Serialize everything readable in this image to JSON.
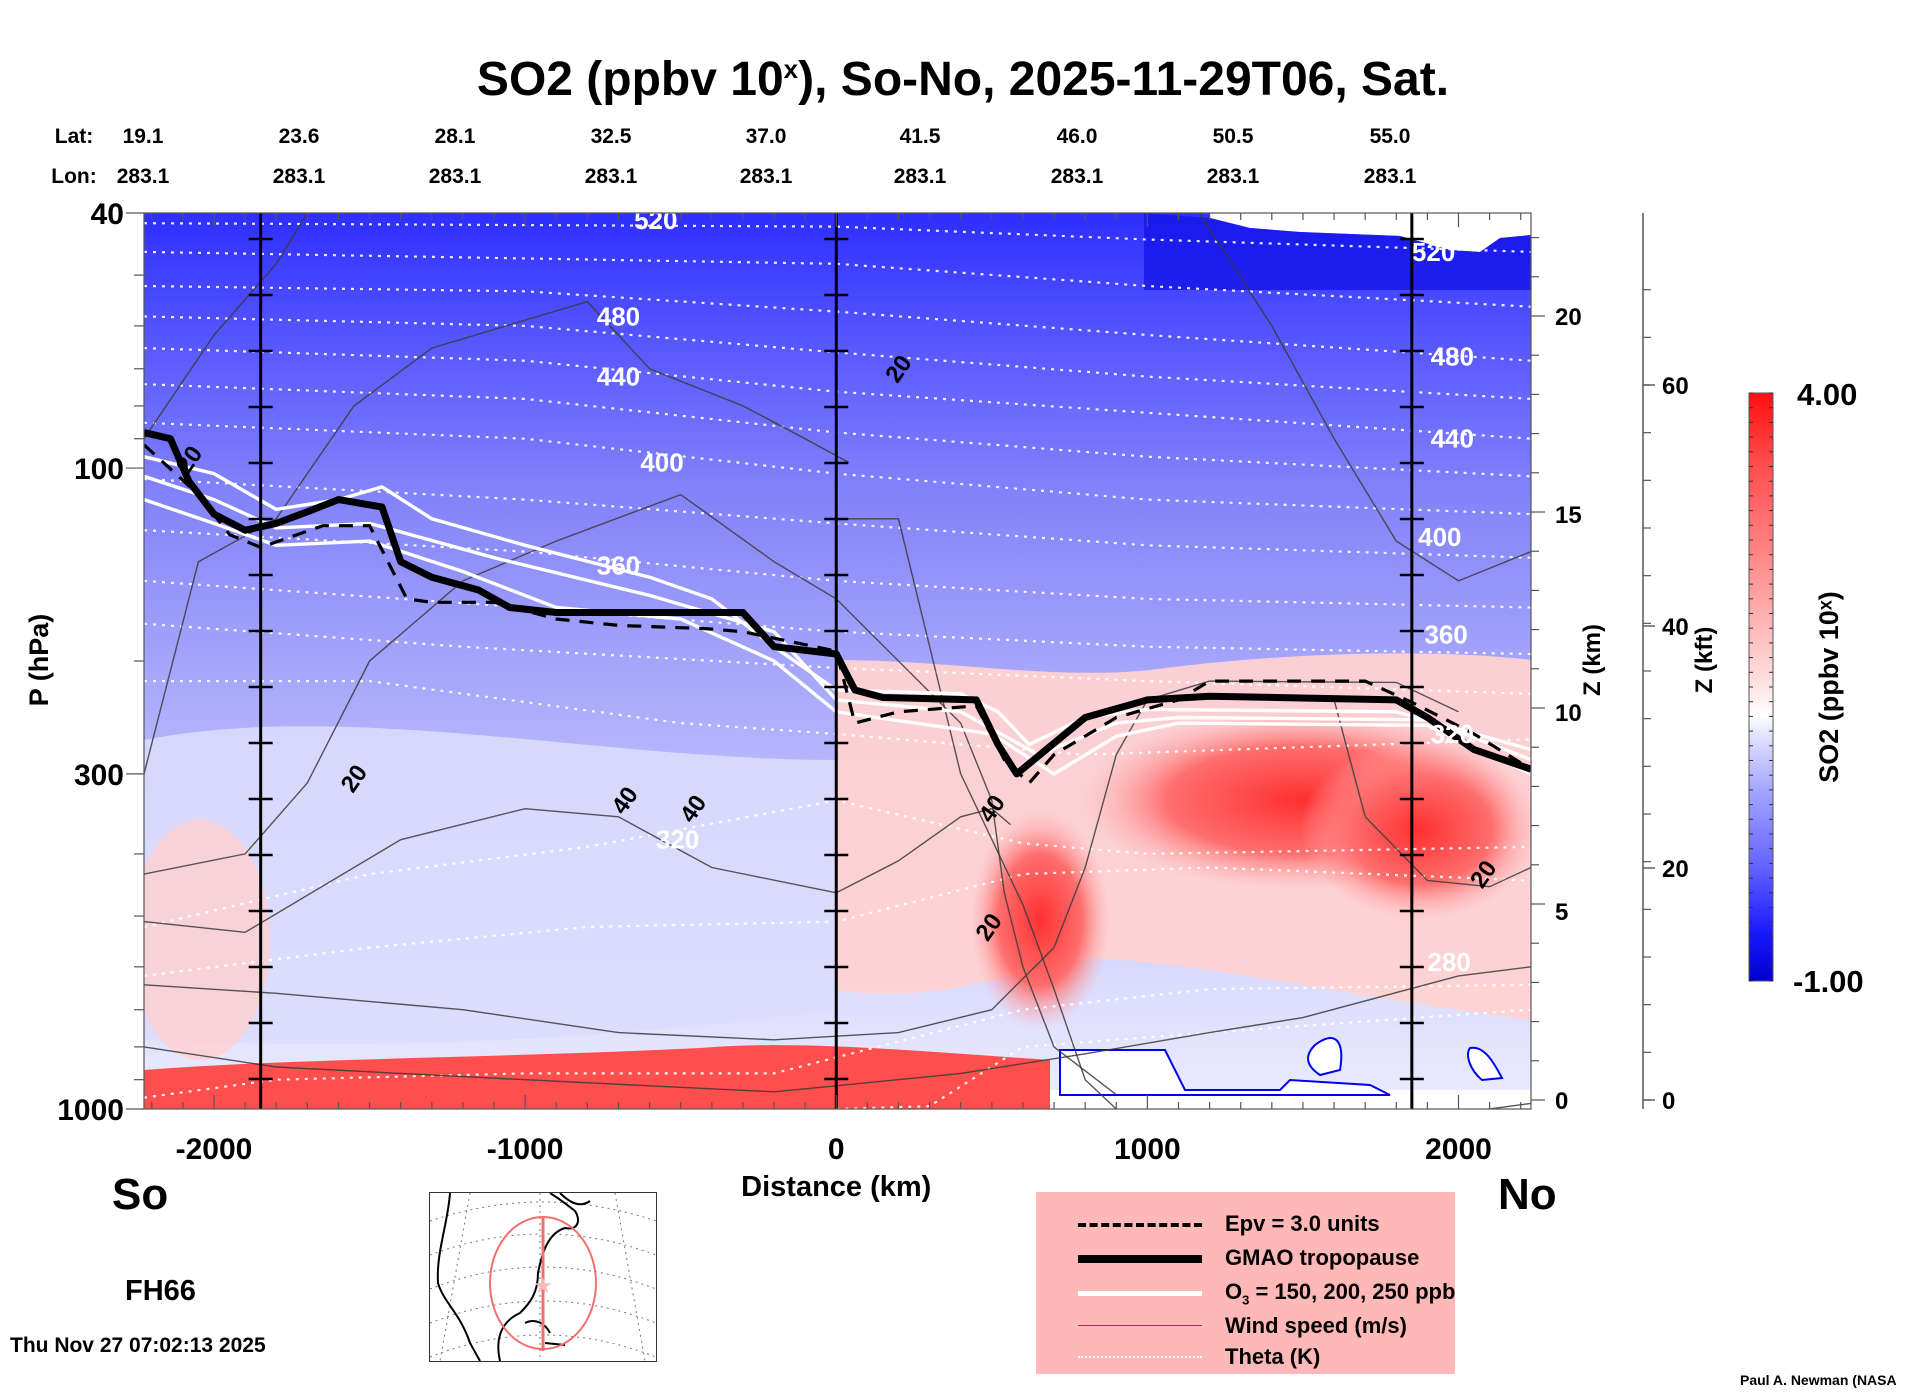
{
  "title": {
    "main": "SO2 (ppbv 10",
    "superscript": "x",
    "rest": "), So-No, 2025-11-29T06, Sat."
  },
  "latlon": {
    "lat_label": "Lat:",
    "lon_label": "Lon:",
    "lat_values": [
      "19.1",
      "23.6",
      "28.1",
      "32.5",
      "37.0",
      "41.5",
      "46.0",
      "50.5",
      "55.0"
    ],
    "lon_values": [
      "283.1",
      "283.1",
      "283.1",
      "283.1",
      "283.1",
      "283.1",
      "283.1",
      "283.1",
      "283.1"
    ]
  },
  "labels": {
    "south": "So",
    "north": "No",
    "forecast_hour": "FH66",
    "timestamp": "Thu Nov 27 07:02:13 2025",
    "credit": "Paul A. Newman (NASA"
  },
  "legend": {
    "items": [
      {
        "style": "dashed",
        "label": "Epv = 3.0 units"
      },
      {
        "style": "thick",
        "label": "GMAO tropopause"
      },
      {
        "style": "white",
        "label_pre": "O",
        "label_sub": "3",
        "label_post": " = 150, 200, 250 ppb"
      },
      {
        "style": "thin",
        "label": "Wind speed (m/s)"
      },
      {
        "style": "dotted",
        "label": "Theta (K)"
      }
    ]
  },
  "colors": {
    "legend_bg": "#ffb8b8",
    "high": "#ff0000",
    "mid": "#ffffff",
    "low": "#0000dd"
  },
  "chart_data": {
    "type": "heatmap",
    "title": "SO2 (ppbv 10^x), So-No, 2025-11-29T06, Sat.",
    "xlabel": "Distance (km)",
    "ylabel": "P (hPa)",
    "y2label": "Z (km)",
    "y3label": "Z (kft)",
    "colorbar_label": "SO2 (ppbv 10^x)",
    "xlim": [
      -2225,
      2233
    ],
    "ylim": [
      1000,
      40
    ],
    "yscale": "log",
    "x_ticks": [
      -2000,
      -1000,
      0,
      1000,
      2000
    ],
    "x_tick_labels": [
      "-2000",
      "-1000",
      "0",
      "1000",
      "2000"
    ],
    "y_ticks": [
      40,
      100,
      300,
      1000
    ],
    "y_tick_labels": [
      "40",
      "100",
      "300",
      "1000"
    ],
    "z_km_ticks": [
      0,
      5,
      10,
      15,
      20
    ],
    "z_km_tick_labels": [
      "0",
      "5",
      "10",
      "15",
      "20"
    ],
    "z_kft_ticks": [
      0,
      20,
      40,
      60
    ],
    "z_kft_tick_labels": [
      "0",
      "20",
      "40",
      "60"
    ],
    "colorbar_range": [
      -1.0,
      4.0
    ],
    "colorbar_tick_labels": [
      "4.00",
      "-1.00"
    ],
    "vertical_markers_km": [
      -1850,
      0,
      1850
    ],
    "theta_contours_K": [
      280,
      320,
      360,
      400,
      440,
      480,
      520
    ],
    "wind_speed_contour_labels": [
      "20",
      "20",
      "20",
      "20",
      "20",
      "40",
      "40",
      "40"
    ],
    "theta_label_positions": [
      {
        "label": "520",
        "x_km": -580,
        "p_hPa": 41
      },
      {
        "label": "480",
        "x_km": -700,
        "p_hPa": 58
      },
      {
        "label": "440",
        "x_km": -700,
        "p_hPa": 72
      },
      {
        "label": "400",
        "x_km": -560,
        "p_hPa": 98
      },
      {
        "label": "360",
        "x_km": -700,
        "p_hPa": 142
      },
      {
        "label": "320",
        "x_km": -510,
        "p_hPa": 380
      },
      {
        "label": "520",
        "x_km": 1920,
        "p_hPa": 46
      },
      {
        "label": "480",
        "x_km": 1980,
        "p_hPa": 67
      },
      {
        "label": "440",
        "x_km": 1980,
        "p_hPa": 90
      },
      {
        "label": "400",
        "x_km": 1940,
        "p_hPa": 128
      },
      {
        "label": "360",
        "x_km": 1960,
        "p_hPa": 182
      },
      {
        "label": "320",
        "x_km": 1980,
        "p_hPa": 260
      },
      {
        "label": "280",
        "x_km": 1970,
        "p_hPa": 590
      }
    ],
    "wind_label_positions": [
      {
        "label": "20",
        "x_km": -2080,
        "p_hPa": 97
      },
      {
        "label": "20",
        "x_km": 200,
        "p_hPa": 70
      },
      {
        "label": "20",
        "x_km": -1550,
        "p_hPa": 305
      },
      {
        "label": "40",
        "x_km": -680,
        "p_hPa": 330
      },
      {
        "label": "40",
        "x_km": -460,
        "p_hPa": 340
      },
      {
        "label": "40",
        "x_km": 500,
        "p_hPa": 340
      },
      {
        "label": "20",
        "x_km": 490,
        "p_hPa": 520
      },
      {
        "label": "20",
        "x_km": 2080,
        "p_hPa": 430
      }
    ],
    "tropopause_gmao": [
      [
        -2225,
        88
      ],
      [
        -2140,
        90
      ],
      [
        -2080,
        105
      ],
      [
        -2000,
        118
      ],
      [
        -1900,
        125
      ],
      [
        -1800,
        122
      ],
      [
        -1700,
        117
      ],
      [
        -1600,
        112
      ],
      [
        -1460,
        115
      ],
      [
        -1400,
        140
      ],
      [
        -1300,
        148
      ],
      [
        -1150,
        155
      ],
      [
        -1050,
        165
      ],
      [
        -900,
        168
      ],
      [
        -300,
        168
      ],
      [
        -200,
        190
      ],
      [
        0,
        195
      ],
      [
        60,
        222
      ],
      [
        150,
        228
      ],
      [
        450,
        230
      ],
      [
        520,
        270
      ],
      [
        580,
        300
      ],
      [
        800,
        245
      ],
      [
        1000,
        230
      ],
      [
        1200,
        227
      ],
      [
        1800,
        230
      ],
      [
        1900,
        245
      ],
      [
        2050,
        275
      ],
      [
        2233,
        295
      ]
    ],
    "epv_3": [
      [
        -2225,
        92
      ],
      [
        -2050,
        110
      ],
      [
        -1950,
        127
      ],
      [
        -1850,
        133
      ],
      [
        -1650,
        123
      ],
      [
        -1500,
        123
      ],
      [
        -1380,
        160
      ],
      [
        -1300,
        162
      ],
      [
        -1100,
        162
      ],
      [
        -900,
        172
      ],
      [
        -700,
        176
      ],
      [
        -420,
        178
      ],
      [
        -300,
        180
      ],
      [
        0,
        193
      ],
      [
        60,
        250
      ],
      [
        200,
        240
      ],
      [
        450,
        235
      ],
      [
        540,
        285
      ],
      [
        620,
        310
      ],
      [
        700,
        280
      ],
      [
        900,
        245
      ],
      [
        1100,
        230
      ],
      [
        1200,
        215
      ],
      [
        1700,
        215
      ],
      [
        1850,
        232
      ],
      [
        2050,
        260
      ],
      [
        2233,
        295
      ]
    ],
    "o3_150_200_250": [
      [
        [
          -2225,
          96
        ],
        [
          -2000,
          102
        ],
        [
          -1800,
          116
        ],
        [
          -1600,
          112
        ],
        [
          -1460,
          107
        ],
        [
          -1300,
          120
        ],
        [
          -1000,
          132
        ],
        [
          -600,
          148
        ],
        [
          -400,
          160
        ],
        [
          -200,
          190
        ],
        [
          0,
          222
        ],
        [
          400,
          225
        ],
        [
          520,
          240
        ],
        [
          620,
          270
        ],
        [
          800,
          245
        ],
        [
          1000,
          238
        ],
        [
          1800,
          240
        ],
        [
          2233,
          275
        ]
      ],
      [
        [
          -2225,
          103
        ],
        [
          -2000,
          112
        ],
        [
          -1800,
          124
        ],
        [
          -1500,
          122
        ],
        [
          -1100,
          138
        ],
        [
          -600,
          158
        ],
        [
          -200,
          180
        ],
        [
          0,
          230
        ],
        [
          400,
          240
        ],
        [
          650,
          280
        ],
        [
          900,
          250
        ],
        [
          1100,
          245
        ],
        [
          1900,
          247
        ],
        [
          2233,
          285
        ]
      ],
      [
        [
          -2225,
          112
        ],
        [
          -2000,
          122
        ],
        [
          -1800,
          132
        ],
        [
          -1500,
          130
        ],
        [
          -1200,
          145
        ],
        [
          -900,
          165
        ],
        [
          -500,
          172
        ],
        [
          -200,
          200
        ],
        [
          0,
          240
        ],
        [
          500,
          260
        ],
        [
          700,
          300
        ],
        [
          900,
          262
        ],
        [
          1100,
          250
        ],
        [
          1900,
          252
        ],
        [
          2233,
          300
        ]
      ]
    ],
    "regions": [
      {
        "desc": "stratosphere, low SO2",
        "value_approx": -0.6
      },
      {
        "desc": "upper troposphere south of 0 km",
        "value_approx": 0.8
      },
      {
        "desc": "mid-troposphere north of 500 km",
        "value_approx": 3.3
      },
      {
        "desc": "boundary layer south of 0 km",
        "value_approx": 3.6
      },
      {
        "desc": "uppermost stratosphere north of 1000 km",
        "value_approx": -1.0
      }
    ]
  }
}
